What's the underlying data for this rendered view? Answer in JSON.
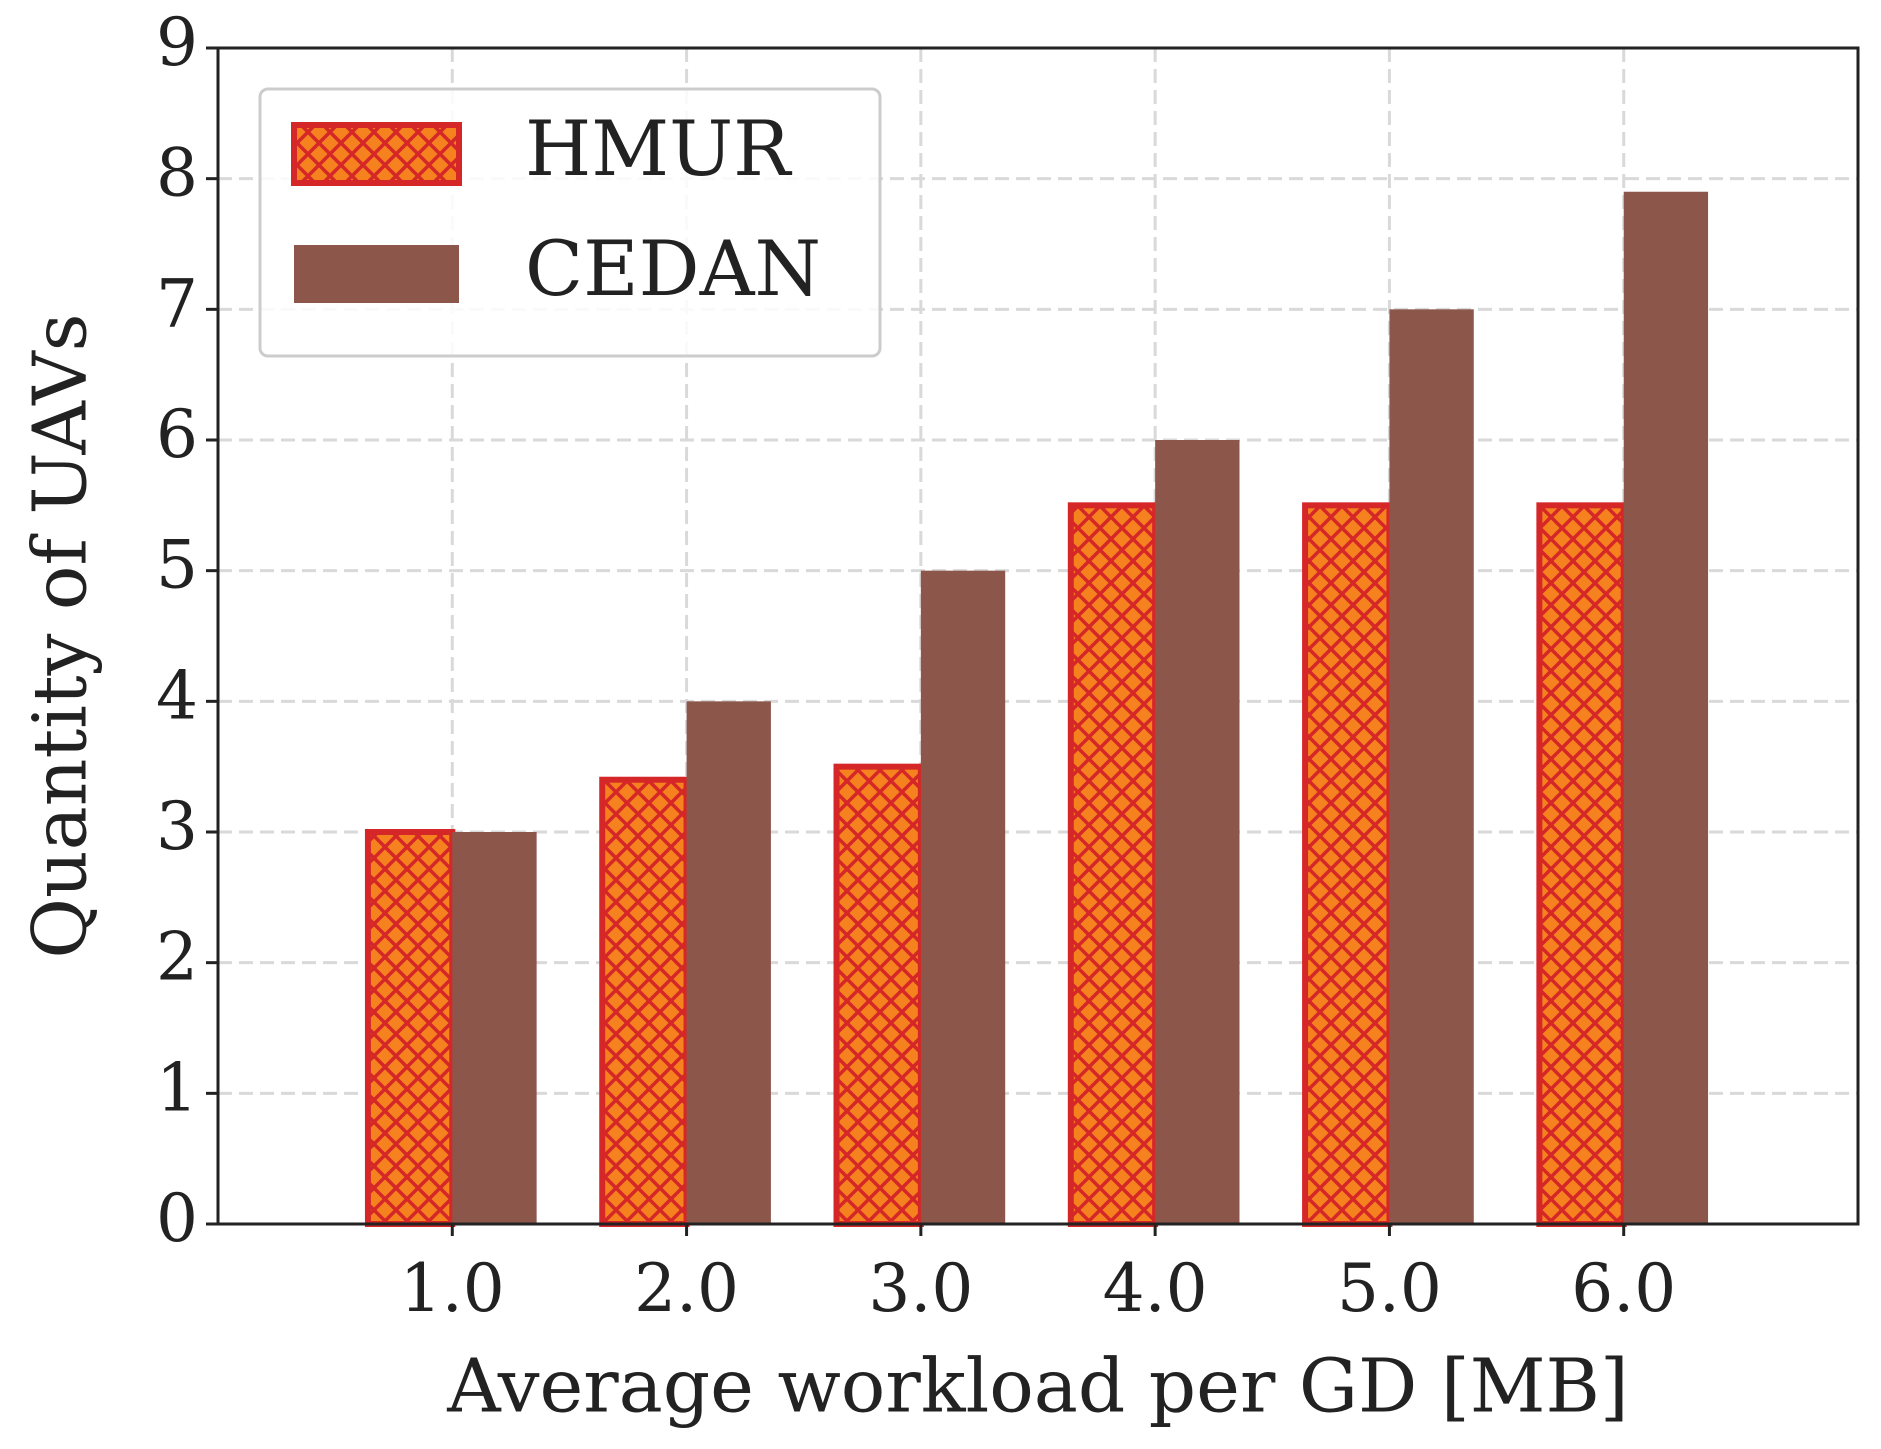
{
  "chart_data": {
    "type": "bar",
    "xlabel": "Average workload per GD [MB]",
    "ylabel": "Quantity of UAVs",
    "categories": [
      "1.0",
      "2.0",
      "3.0",
      "4.0",
      "5.0",
      "6.0"
    ],
    "series": [
      {
        "name": "HMUR",
        "color": "#f5821f",
        "edgecolor": "#d62728",
        "hatch": "crosshatch",
        "values": [
          3.0,
          3.4,
          3.5,
          5.5,
          5.5,
          5.5
        ]
      },
      {
        "name": "CEDAN",
        "color": "#8c564b",
        "values": [
          3,
          4,
          5,
          6,
          7,
          7.9
        ]
      }
    ],
    "ylim": [
      0,
      9
    ],
    "yticks": [
      0,
      1,
      2,
      3,
      4,
      5,
      6,
      7,
      8,
      9
    ],
    "grid": true,
    "legend": "upper left"
  }
}
